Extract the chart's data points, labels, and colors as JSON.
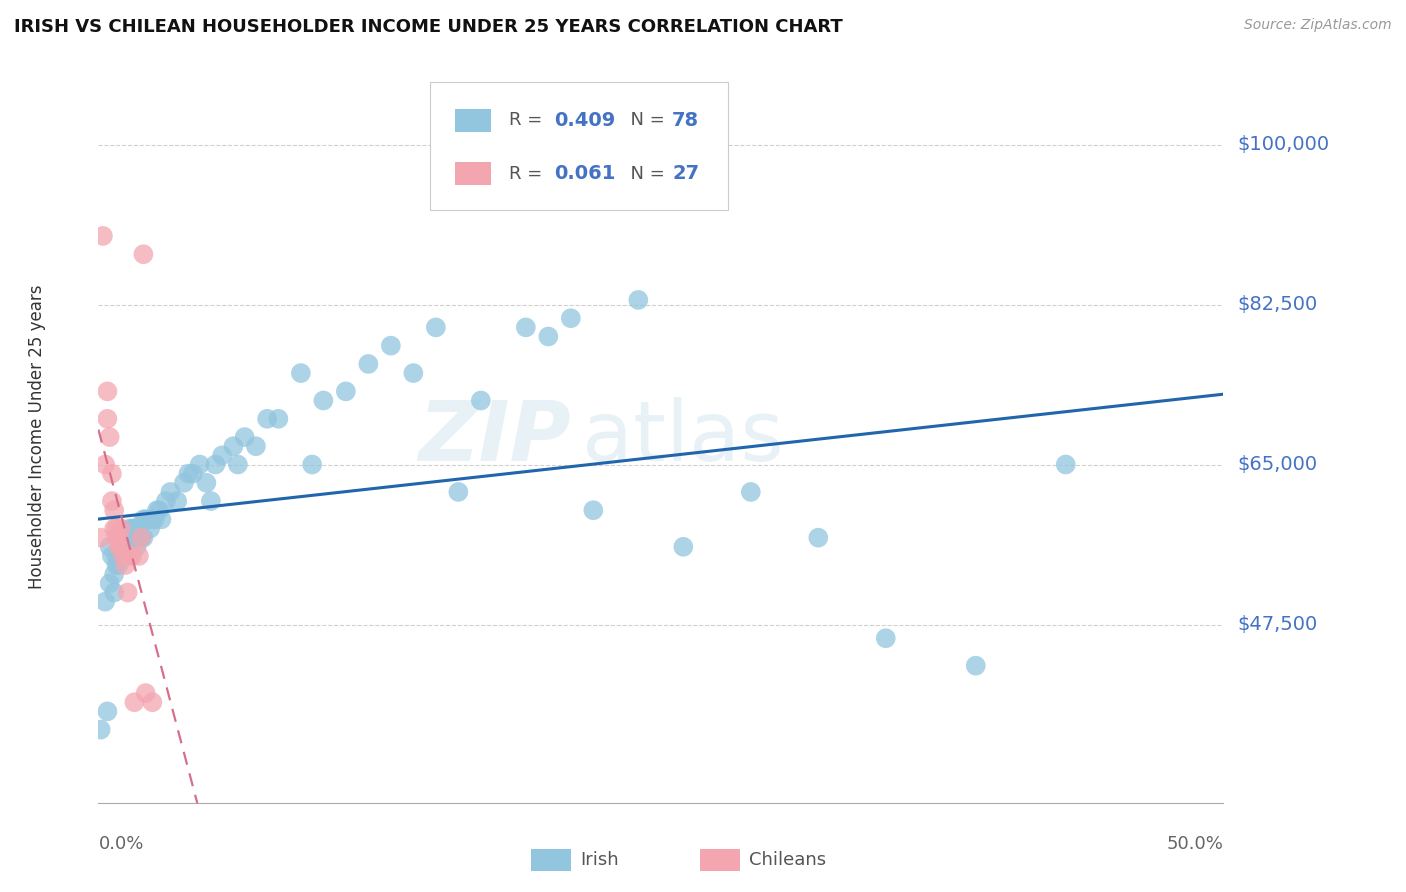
{
  "title": "IRISH VS CHILEAN HOUSEHOLDER INCOME UNDER 25 YEARS CORRELATION CHART",
  "source": "Source: ZipAtlas.com",
  "ylabel": "Householder Income Under 25 years",
  "ytick_labels": [
    "$47,500",
    "$65,000",
    "$82,500",
    "$100,000"
  ],
  "ytick_values": [
    47500,
    65000,
    82500,
    100000
  ],
  "ymin": 28000,
  "ymax": 108000,
  "xmin": 0.0,
  "xmax": 0.5,
  "irish_color": "#92c5de",
  "chilean_color": "#f4a6b0",
  "irish_line_color": "#2166ac",
  "chilean_line_color": "#d6708a",
  "watermark_zip": "ZIP",
  "watermark_atlas": "atlas",
  "irish_x": [
    0.001,
    0.003,
    0.004,
    0.005,
    0.005,
    0.006,
    0.007,
    0.007,
    0.008,
    0.008,
    0.009,
    0.009,
    0.01,
    0.01,
    0.011,
    0.011,
    0.012,
    0.012,
    0.013,
    0.013,
    0.014,
    0.014,
    0.015,
    0.015,
    0.016,
    0.016,
    0.017,
    0.017,
    0.018,
    0.019,
    0.02,
    0.02,
    0.021,
    0.022,
    0.023,
    0.024,
    0.025,
    0.026,
    0.027,
    0.028,
    0.03,
    0.032,
    0.035,
    0.038,
    0.04,
    0.042,
    0.045,
    0.048,
    0.05,
    0.052,
    0.055,
    0.06,
    0.062,
    0.065,
    0.07,
    0.075,
    0.08,
    0.09,
    0.095,
    0.1,
    0.11,
    0.12,
    0.13,
    0.14,
    0.15,
    0.16,
    0.17,
    0.19,
    0.2,
    0.21,
    0.22,
    0.24,
    0.26,
    0.29,
    0.32,
    0.35,
    0.39,
    0.43
  ],
  "irish_y": [
    36000,
    50000,
    38000,
    56000,
    52000,
    55000,
    53000,
    51000,
    55000,
    54000,
    55000,
    54000,
    56000,
    55000,
    57000,
    55000,
    57000,
    56000,
    57000,
    56000,
    58000,
    57000,
    58000,
    57000,
    58000,
    57000,
    58000,
    56000,
    58000,
    57000,
    59000,
    57000,
    59000,
    59000,
    58000,
    59000,
    59000,
    60000,
    60000,
    59000,
    61000,
    62000,
    61000,
    63000,
    64000,
    64000,
    65000,
    63000,
    61000,
    65000,
    66000,
    67000,
    65000,
    68000,
    67000,
    70000,
    70000,
    75000,
    65000,
    72000,
    73000,
    76000,
    78000,
    75000,
    80000,
    62000,
    72000,
    80000,
    79000,
    81000,
    60000,
    83000,
    56000,
    62000,
    57000,
    46000,
    43000,
    65000
  ],
  "chilean_x": [
    0.001,
    0.002,
    0.003,
    0.004,
    0.004,
    0.005,
    0.006,
    0.006,
    0.007,
    0.007,
    0.008,
    0.008,
    0.009,
    0.009,
    0.01,
    0.01,
    0.011,
    0.012,
    0.013,
    0.014,
    0.015,
    0.016,
    0.018,
    0.019,
    0.02,
    0.021,
    0.024
  ],
  "chilean_y": [
    57000,
    90000,
    65000,
    73000,
    70000,
    68000,
    64000,
    61000,
    60000,
    58000,
    58000,
    57000,
    57000,
    56000,
    58000,
    56000,
    55000,
    54000,
    51000,
    55000,
    55000,
    39000,
    55000,
    57000,
    88000,
    40000,
    39000
  ]
}
